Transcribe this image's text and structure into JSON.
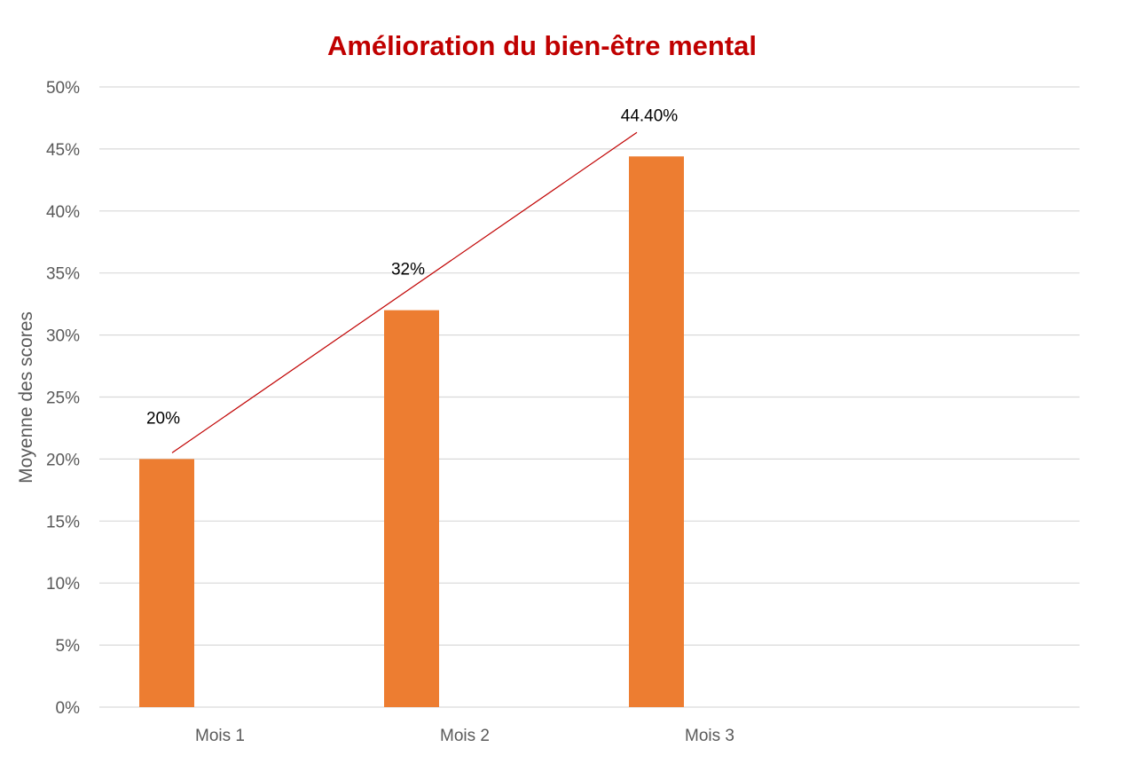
{
  "chart_data": {
    "type": "bar",
    "title": "Amélioration du bien-être mental",
    "xlabel": "",
    "ylabel": "Moyenne des scores",
    "categories": [
      "Mois 1",
      "Mois 2",
      "Mois 3"
    ],
    "series": [
      {
        "values": [
          20,
          32,
          44.4
        ],
        "data_labels": [
          "20%",
          "32%",
          "44.40%"
        ]
      }
    ],
    "ylim": [
      0,
      50
    ],
    "y_ticks": [
      0,
      5,
      10,
      15,
      20,
      25,
      30,
      35,
      40,
      45,
      50
    ],
    "y_tick_labels": [
      "0%",
      "5%",
      "10%",
      "15%",
      "20%",
      "25%",
      "30%",
      "35%",
      "40%",
      "45%",
      "50%"
    ],
    "grid": true,
    "legend": "none",
    "trendline": {
      "type": "linear",
      "color": "#C00000"
    },
    "colors": {
      "title": "#C00000",
      "bar": "#ED7D31",
      "gridline": "#D9D9D9",
      "axis_text": "#595959"
    }
  }
}
